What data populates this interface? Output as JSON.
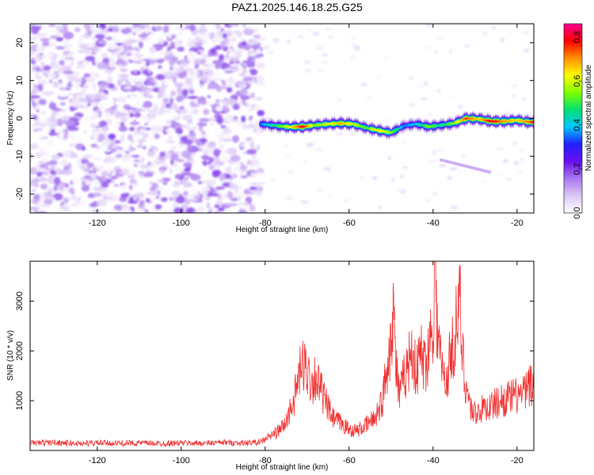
{
  "figure_title": "PAZ1.2025.146.18.25.G25",
  "colors": {
    "snr_line": "#f03030",
    "colormap": [
      "#ffffff",
      "#dcc8f6",
      "#a878f0",
      "#6a10f0",
      "#2020ff",
      "#00c8ff",
      "#00e070",
      "#80ff00",
      "#ffff00",
      "#ff9000",
      "#ff0000",
      "#ff0090"
    ]
  },
  "chart_data": [
    {
      "type": "heatmap",
      "title": "",
      "xlabel": "Height of straight line (km)",
      "ylabel": "Frequency (Hz)",
      "xlim": [
        -136,
        -16
      ],
      "ylim": [
        -25,
        25
      ],
      "x_ticks": [
        -120,
        -100,
        -80,
        -60,
        -40,
        -20
      ],
      "y_ticks": [
        -20,
        -10,
        0,
        10,
        20
      ],
      "colorbar": {
        "label": "Normalized spectral amplitude",
        "range": [
          0,
          0.86
        ],
        "ticks": [
          0.0,
          0.2,
          0.4,
          0.6,
          0.8
        ]
      },
      "noise_region_km": [
        -136,
        -81
      ],
      "ridge": {
        "x": [
          -81,
          -77,
          -74,
          -71,
          -68,
          -65,
          -62,
          -59,
          -56,
          -53,
          -50,
          -47,
          -44,
          -41,
          -38,
          -35,
          -32,
          -29,
          -26,
          -23,
          -20,
          -17,
          -16
        ],
        "freq": [
          -1.5,
          -2,
          -2.3,
          -2.2,
          -1.8,
          -1.5,
          -1.3,
          -1.5,
          -2.5,
          -3.2,
          -3.8,
          -2.0,
          -1.5,
          -2.2,
          -1.8,
          -1.3,
          0.0,
          -0.2,
          -0.8,
          -0.8,
          -0.5,
          -1.0,
          -1.0
        ],
        "amp": [
          0.35,
          0.5,
          0.62,
          0.8,
          0.55,
          0.6,
          0.68,
          0.6,
          0.5,
          0.65,
          0.55,
          0.35,
          0.4,
          0.55,
          0.45,
          0.55,
          0.75,
          0.65,
          0.8,
          0.7,
          0.65,
          0.72,
          0.86
        ]
      }
    },
    {
      "type": "line",
      "title": "",
      "xlabel": "Height of straight line (km)",
      "ylabel": "SNR (10 * v/v)",
      "xlim": [
        -136,
        -16
      ],
      "ylim": [
        0,
        3800
      ],
      "x_ticks": [
        -120,
        -100,
        -80,
        -60,
        -40,
        -20
      ],
      "y_ticks": [
        1000,
        2000,
        3000
      ],
      "series": [
        {
          "x": [
            -136,
            -130,
            -125,
            -120,
            -115,
            -110,
            -105,
            -100,
            -95,
            -90,
            -85,
            -81,
            -79,
            -77,
            -75,
            -74,
            -73,
            -72,
            -71,
            -70,
            -69,
            -68,
            -66,
            -64,
            -62,
            -60,
            -58,
            -56,
            -54,
            -52,
            -51,
            -50,
            -49.5,
            -49,
            -48,
            -47,
            -46,
            -45,
            -44,
            -43,
            -42,
            -41,
            -40,
            -39.5,
            -39,
            -38,
            -37,
            -36,
            -35,
            -34,
            -33.5,
            -33,
            -32,
            -31,
            -30,
            -28,
            -26,
            -24,
            -22,
            -20,
            -18,
            -17,
            -16
          ],
          "values": [
            150,
            160,
            140,
            150,
            145,
            150,
            140,
            150,
            145,
            160,
            150,
            170,
            280,
            380,
            550,
            850,
            1050,
            1500,
            1700,
            1650,
            1350,
            1500,
            1050,
            650,
            550,
            420,
            400,
            500,
            650,
            1000,
            1700,
            2250,
            3100,
            1900,
            1050,
            1450,
            1700,
            2100,
            1500,
            2000,
            1700,
            2050,
            2700,
            3750,
            2450,
            1700,
            1300,
            1850,
            2200,
            2800,
            2850,
            1900,
            1250,
            850,
            750,
            850,
            900,
            1000,
            1050,
            1100,
            1150,
            1350,
            1200
          ]
        }
      ]
    }
  ]
}
